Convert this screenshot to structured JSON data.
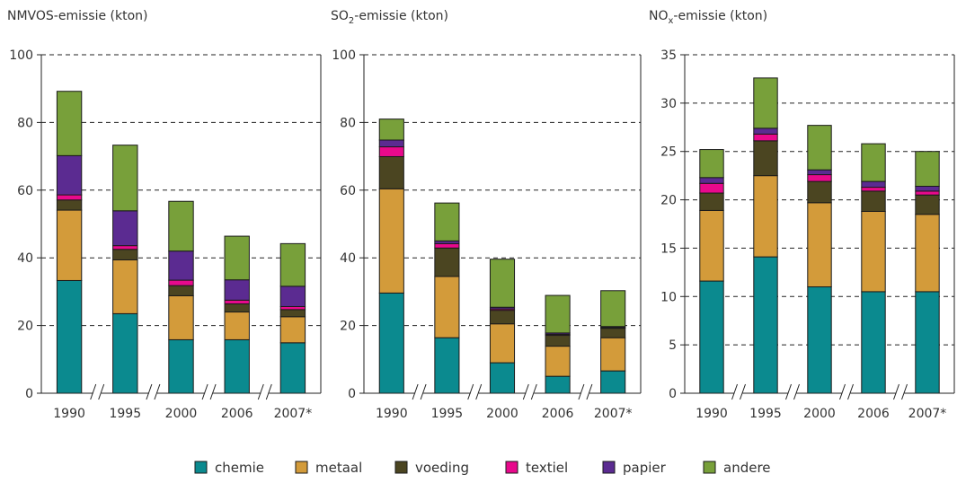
{
  "legend": [
    {
      "name": "chemie",
      "color": "#0b8a8f"
    },
    {
      "name": "metaal",
      "color": "#d39b3a"
    },
    {
      "name": "voeding",
      "color": "#4b4521"
    },
    {
      "name": "textiel",
      "color": "#e8098c"
    },
    {
      "name": "papier",
      "color": "#5b2b91"
    },
    {
      "name": "andere",
      "color": "#78a03a"
    }
  ],
  "chart_data": [
    {
      "type": "bar",
      "stacked": true,
      "title": {
        "main": "NMVOS-emissie (kton)",
        "sub": ""
      },
      "categories": [
        "1990",
        "1995",
        "2000",
        "2006",
        "2007*"
      ],
      "ylim": [
        0,
        100
      ],
      "yticks": [
        0,
        20,
        40,
        60,
        80,
        100
      ],
      "grid": "dashed-horizontal",
      "axis_breaks": true,
      "series": [
        {
          "name": "chemie",
          "values": [
            33.3,
            23.5,
            15.8,
            15.8,
            14.9
          ]
        },
        {
          "name": "metaal",
          "values": [
            20.8,
            15.9,
            13.0,
            8.2,
            7.7
          ]
        },
        {
          "name": "voeding",
          "values": [
            3.0,
            3.1,
            3.0,
            2.4,
            2.1
          ]
        },
        {
          "name": "textiel",
          "values": [
            1.5,
            1.1,
            1.6,
            1.1,
            0.9
          ]
        },
        {
          "name": "papier",
          "values": [
            11.6,
            10.3,
            8.6,
            6.0,
            6.0
          ]
        },
        {
          "name": "andere",
          "values": [
            19.0,
            19.4,
            14.7,
            12.9,
            12.6
          ]
        }
      ]
    },
    {
      "type": "bar",
      "stacked": true,
      "title": {
        "main": "SO",
        "sub": "2",
        "rest": "-emissie (kton)"
      },
      "categories": [
        "1990",
        "1995",
        "2000",
        "2006",
        "2007*"
      ],
      "ylim": [
        0,
        100
      ],
      "yticks": [
        0,
        20,
        40,
        60,
        80,
        100
      ],
      "grid": "dashed-horizontal",
      "axis_breaks": true,
      "series": [
        {
          "name": "chemie",
          "values": [
            29.6,
            16.4,
            9.0,
            5.0,
            6.6
          ]
        },
        {
          "name": "metaal",
          "values": [
            30.8,
            18.1,
            11.5,
            8.9,
            9.8
          ]
        },
        {
          "name": "voeding",
          "values": [
            9.5,
            8.4,
            4.0,
            3.2,
            2.8
          ]
        },
        {
          "name": "textiel",
          "values": [
            2.9,
            1.3,
            0.4,
            0.3,
            0.2
          ]
        },
        {
          "name": "papier",
          "values": [
            2.0,
            0.8,
            0.5,
            0.4,
            0.3
          ]
        },
        {
          "name": "andere",
          "values": [
            6.2,
            11.2,
            14.2,
            11.1,
            10.6
          ]
        }
      ]
    },
    {
      "type": "bar",
      "stacked": true,
      "title": {
        "main": "NO",
        "sub": "x",
        "rest": "-emissie (kton)"
      },
      "categories": [
        "1990",
        "1995",
        "2000",
        "2006",
        "2007*"
      ],
      "ylim": [
        0,
        35
      ],
      "yticks": [
        0,
        5,
        10,
        15,
        20,
        25,
        30,
        35
      ],
      "grid": "dashed-horizontal",
      "axis_breaks": true,
      "series": [
        {
          "name": "chemie",
          "values": [
            11.6,
            14.1,
            11.0,
            10.5,
            10.5
          ]
        },
        {
          "name": "metaal",
          "values": [
            7.3,
            8.4,
            8.7,
            8.3,
            8.0
          ]
        },
        {
          "name": "voeding",
          "values": [
            1.8,
            3.6,
            2.2,
            2.1,
            2.0
          ]
        },
        {
          "name": "textiel",
          "values": [
            1.0,
            0.7,
            0.7,
            0.4,
            0.4
          ]
        },
        {
          "name": "papier",
          "values": [
            0.6,
            0.6,
            0.5,
            0.6,
            0.5
          ]
        },
        {
          "name": "andere",
          "values": [
            2.9,
            5.2,
            4.6,
            3.9,
            3.6
          ]
        }
      ]
    }
  ]
}
